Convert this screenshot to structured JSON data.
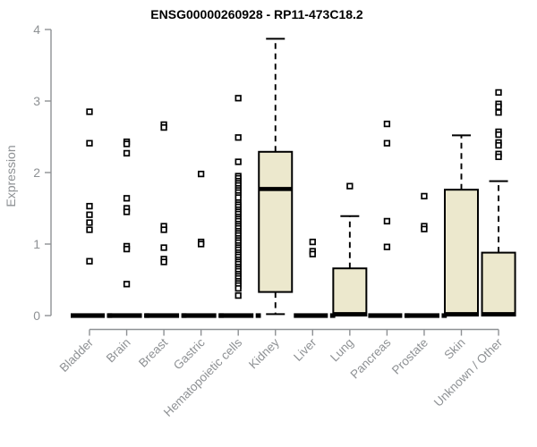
{
  "chart_data": {
    "type": "boxplot",
    "title": "ENSG00000260928 - RP11-473C18.2",
    "ylabel": "Expression",
    "xlabel": "",
    "ylim": [
      0,
      4
    ],
    "yticks": [
      0,
      1,
      2,
      3,
      4
    ],
    "grid": false,
    "legend": "none",
    "colors": {
      "box_fill": "#ece8cd",
      "box_stroke": "#000000",
      "axis": "#8e9194",
      "outlier": "#000000"
    },
    "categories": [
      "Bladder",
      "Brain",
      "Breast",
      "Gastric",
      "Hematopoietic cells",
      "Kidney",
      "Liver",
      "Lung",
      "Pancreas",
      "Prostate",
      "Skin",
      "Unknown / Other"
    ],
    "series": [
      {
        "category": "Bladder",
        "whisker_low": 0,
        "q1": 0,
        "median": 0,
        "q3": 0,
        "whisker_high": 0,
        "outliers": [
          2.85,
          2.41,
          1.53,
          1.41,
          1.3,
          1.2,
          0.76
        ]
      },
      {
        "category": "Brain",
        "whisker_low": 0,
        "q1": 0,
        "median": 0,
        "q3": 0,
        "whisker_high": 0,
        "outliers": [
          2.43,
          2.4,
          2.27,
          1.64,
          1.5,
          1.45,
          0.97,
          0.93,
          0.44
        ]
      },
      {
        "category": "Breast",
        "whisker_low": 0,
        "q1": 0,
        "median": 0,
        "q3": 0,
        "whisker_high": 0,
        "outliers": [
          2.67,
          2.63,
          1.25,
          1.2,
          0.95,
          0.79,
          0.75
        ]
      },
      {
        "category": "Gastric",
        "whisker_low": 0,
        "q1": 0,
        "median": 0,
        "q3": 0,
        "whisker_high": 0,
        "outliers": [
          1.98,
          1.03,
          1.0
        ]
      },
      {
        "category": "Hematopoietic cells",
        "whisker_low": 0,
        "q1": 0,
        "median": 0,
        "q3": 0,
        "whisker_high": 0,
        "outliers": [
          3.04,
          2.49,
          2.15,
          1.95,
          1.92,
          1.88,
          1.85,
          1.82,
          1.78,
          1.75,
          1.72,
          1.68,
          1.65,
          1.58,
          1.55,
          1.52,
          1.48,
          1.45,
          1.42,
          1.38,
          1.35,
          1.32,
          1.28,
          1.25,
          1.22,
          1.18,
          1.15,
          1.12,
          1.08,
          1.05,
          1.02,
          0.98,
          0.95,
          0.92,
          0.88,
          0.85,
          0.82,
          0.78,
          0.75,
          0.72,
          0.68,
          0.65,
          0.62,
          0.58,
          0.55,
          0.52,
          0.48,
          0.45,
          0.42,
          0.38,
          0.28
        ]
      },
      {
        "category": "Kidney",
        "whisker_low": 0.02,
        "q1": 0.33,
        "median": 1.77,
        "q3": 2.29,
        "whisker_high": 3.87,
        "outliers": []
      },
      {
        "category": "Liver",
        "whisker_low": 0,
        "q1": 0,
        "median": 0,
        "q3": 0,
        "whisker_high": 0,
        "outliers": [
          1.03,
          0.9,
          0.86
        ]
      },
      {
        "category": "Lung",
        "whisker_low": 0,
        "q1": 0,
        "median": 0.02,
        "q3": 0.66,
        "whisker_high": 1.39,
        "outliers": [
          1.81
        ]
      },
      {
        "category": "Pancreas",
        "whisker_low": 0,
        "q1": 0,
        "median": 0,
        "q3": 0,
        "whisker_high": 0,
        "outliers": [
          2.68,
          2.41,
          1.32,
          0.96
        ]
      },
      {
        "category": "Prostate",
        "whisker_low": 0,
        "q1": 0,
        "median": 0,
        "q3": 0,
        "whisker_high": 0,
        "outliers": [
          1.67,
          1.25,
          1.21
        ]
      },
      {
        "category": "Skin",
        "whisker_low": 0,
        "q1": 0,
        "median": 0.02,
        "q3": 1.76,
        "whisker_high": 2.52,
        "outliers": []
      },
      {
        "category": "Unknown / Other",
        "whisker_low": 0,
        "q1": 0,
        "median": 0.02,
        "q3": 0.88,
        "whisker_high": 1.88,
        "outliers": [
          3.12,
          2.96,
          2.92,
          2.84,
          2.57,
          2.53,
          2.42,
          2.38,
          2.26,
          2.22
        ]
      }
    ]
  }
}
